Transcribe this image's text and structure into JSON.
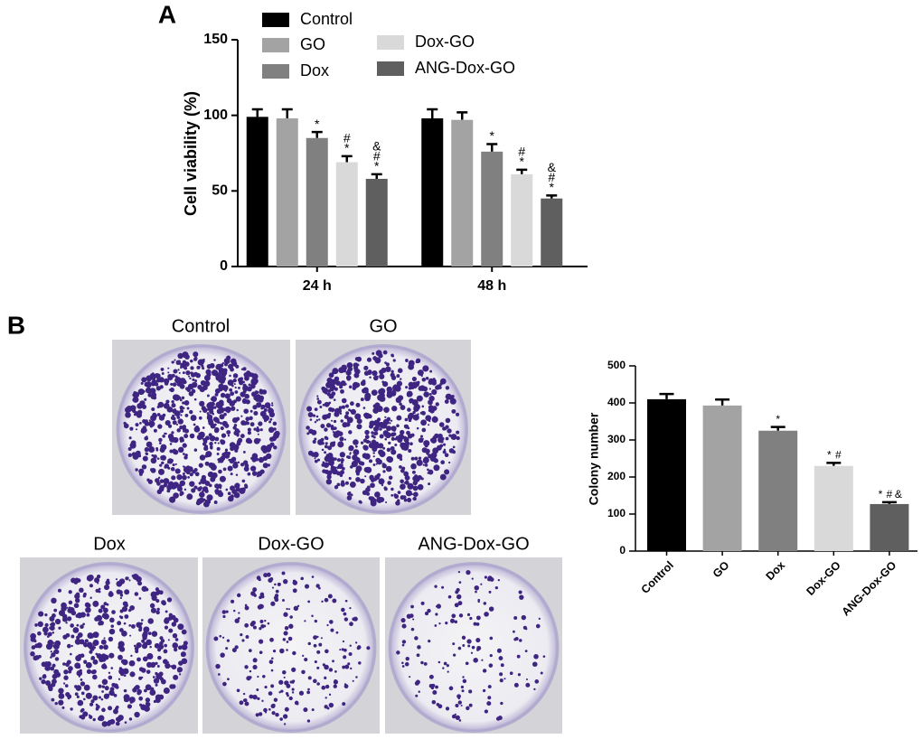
{
  "chart_data": [
    {
      "type": "bar",
      "panel_label": "A",
      "y_label": "Cell viability (%)",
      "categories": [
        "24 h",
        "48 h"
      ],
      "series": [
        {
          "name": "Control",
          "color": "#000000",
          "values": [
            99,
            98
          ],
          "errors": [
            5,
            6
          ],
          "annotations": [
            null,
            null
          ]
        },
        {
          "name": "GO",
          "color": "#a3a3a3",
          "values": [
            98,
            97
          ],
          "errors": [
            6,
            5
          ],
          "annotations": [
            null,
            null
          ]
        },
        {
          "name": "Dox",
          "color": "#808080",
          "values": [
            85,
            76
          ],
          "errors": [
            4,
            5
          ],
          "annotations": [
            [
              "*"
            ],
            [
              "*"
            ]
          ]
        },
        {
          "name": "Dox-GO",
          "color": "#d9d9d9",
          "values": [
            69,
            61
          ],
          "errors": [
            4,
            3
          ],
          "annotations": [
            [
              "#",
              "*"
            ],
            [
              "#",
              "*"
            ]
          ]
        },
        {
          "name": "ANG-Dox-GO",
          "color": "#5f5f5f",
          "values": [
            58,
            45
          ],
          "errors": [
            3,
            2
          ],
          "annotations": [
            [
              "&",
              "#",
              "*"
            ],
            [
              "&",
              "#",
              "*"
            ]
          ]
        }
      ],
      "annotation_stack": "vertical",
      "ylim": [
        0,
        150
      ],
      "yticks": [
        0,
        50,
        100,
        150
      ]
    },
    {
      "type": "bar",
      "panel_label": "B",
      "y_label": "Colony number",
      "categories": [
        "Control",
        "GO",
        "Dox",
        "Dox-GO",
        "ANG-Dox-GO"
      ],
      "values": [
        410,
        393,
        325,
        230,
        127
      ],
      "errors": [
        14,
        16,
        10,
        8,
        5
      ],
      "colors": [
        "#000000",
        "#a3a3a3",
        "#808080",
        "#d9d9d9",
        "#5f5f5f"
      ],
      "annotations": [
        null,
        null,
        [
          "*"
        ],
        [
          "*",
          "#"
        ],
        [
          "*",
          "#",
          "&"
        ]
      ],
      "annotation_stack": "horizontal",
      "ylim": [
        0,
        500
      ],
      "yticks": [
        0,
        100,
        200,
        300,
        400,
        500
      ]
    }
  ],
  "photos": {
    "labels": [
      "Control",
      "GO",
      "Dox",
      "Dox-GO",
      "ANG-Dox-GO"
    ]
  }
}
